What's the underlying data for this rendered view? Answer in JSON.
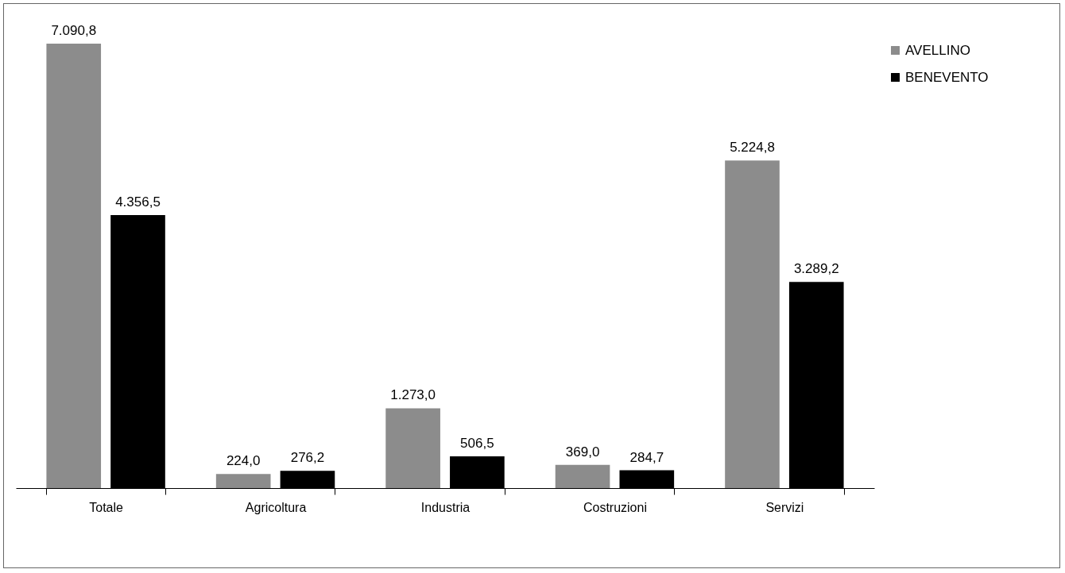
{
  "chart_data": {
    "type": "bar",
    "categories": [
      "Totale",
      "Agricoltura",
      "Industria",
      "Costruzioni",
      "Servizi"
    ],
    "series": [
      {
        "name": "AVELLINO",
        "color": "#8c8c8c",
        "values": [
          7090.8,
          224.0,
          1273.0,
          369.0,
          5224.8
        ],
        "value_labels": [
          "7.090,8",
          "224,0",
          "1.273,0",
          "369,0",
          "5.224,8"
        ]
      },
      {
        "name": "BENEVENTO",
        "color": "#000000",
        "values": [
          4356.5,
          276.2,
          506.5,
          284.7,
          3289.2
        ],
        "value_labels": [
          "4.356,5",
          "276,2",
          "506,5",
          "284,7",
          "3.289,2"
        ]
      }
    ],
    "legend": "right",
    "grid": false
  }
}
